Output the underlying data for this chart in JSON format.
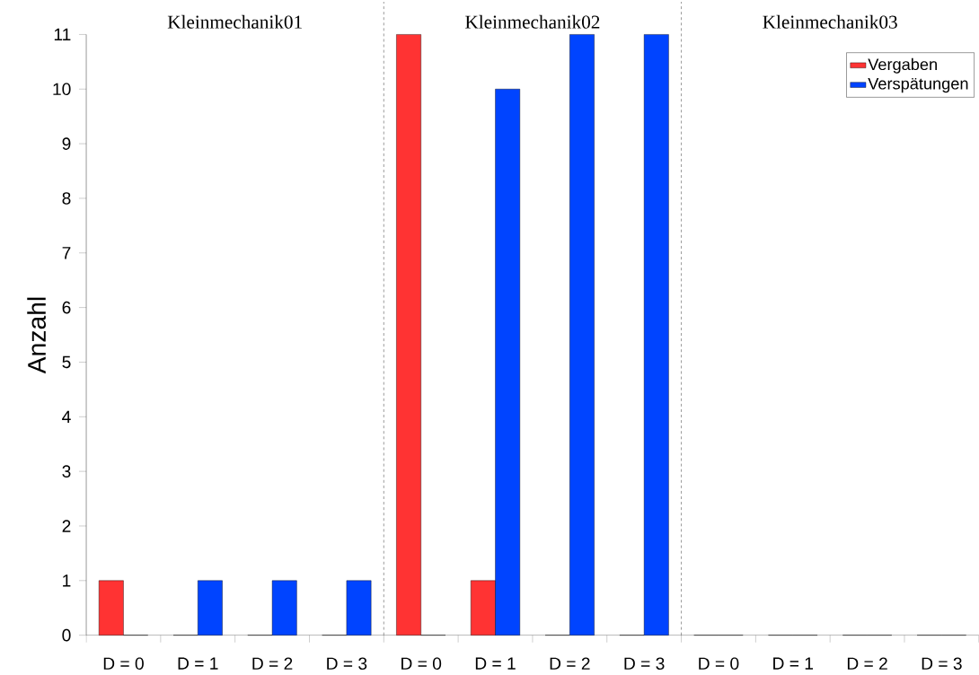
{
  "chart_data": {
    "type": "bar",
    "ylabel": "Anzahl",
    "categories": [
      "D = 0",
      "D = 1",
      "D = 2",
      "D = 3",
      "D = 0",
      "D = 1",
      "D = 2",
      "D = 3",
      "D = 0",
      "D = 1",
      "D = 2",
      "D = 3"
    ],
    "series": [
      {
        "name": "Vergaben",
        "color": "#ff3333",
        "values": [
          1,
          0,
          0,
          0,
          11,
          1,
          0,
          0,
          0,
          0,
          0,
          0
        ]
      },
      {
        "name": "Verspätungen",
        "color": "#0044ff",
        "values": [
          0,
          1,
          1,
          1,
          0,
          10,
          11,
          11,
          0,
          0,
          0,
          0
        ]
      }
    ],
    "annotations": [
      "Kleinmechanik01",
      "Kleinmechanik02",
      "Kleinmechanik03"
    ],
    "ylim": [
      0,
      11
    ],
    "yticks": [
      0,
      1,
      2,
      3,
      4,
      5,
      6,
      7,
      8,
      9,
      10,
      11
    ],
    "grid": false,
    "legend": "top right"
  }
}
